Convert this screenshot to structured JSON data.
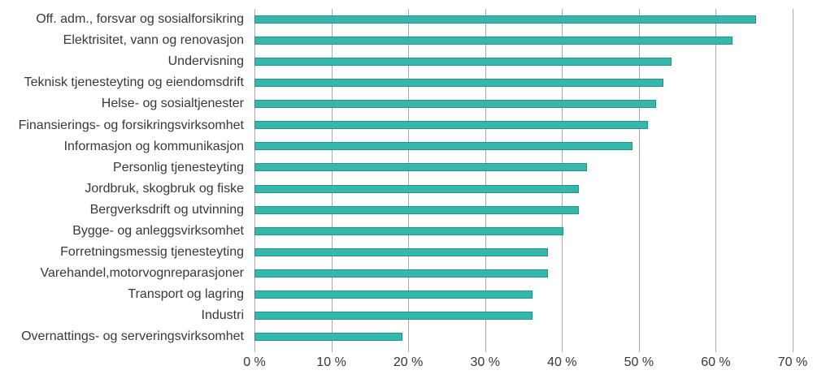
{
  "chart_data": {
    "type": "bar",
    "orientation": "horizontal",
    "title": "",
    "xlabel": "",
    "ylabel": "",
    "categories": [
      "Off. adm., forsvar og sosialforsikring",
      "Elektrisitet, vann og renovasjon",
      "Undervisning",
      "Teknisk tjenesteyting og eiendomsdrift",
      "Helse- og sosialtjenester",
      "Finansierings- og forsikringsvirksomhet",
      "Informasjon og kommunikasjon",
      "Personlig tjenesteyting",
      "Jordbruk, skogbruk og fiske",
      "Bergverksdrift og utvinning",
      "Bygge- og anleggsvirksomhet",
      "Forretningsmessig tjenesteyting",
      "Varehandel,motorvognreparasjoner",
      "Transport og lagring",
      "Industri",
      "Overnattings- og serveringsvirksomhet"
    ],
    "values": [
      65,
      62,
      54,
      53,
      52,
      51,
      49,
      43,
      42,
      42,
      40,
      38,
      38,
      36,
      36,
      19
    ],
    "unit": "%",
    "xlim": [
      0,
      70
    ],
    "x_tick_labels": [
      "0 %",
      "10 %",
      "20 %",
      "30 %",
      "40 %",
      "50 %",
      "60 %",
      "70 %"
    ],
    "grid": "vertical",
    "legend": "none",
    "colors": {
      "bar_fill": "#36b7ac",
      "bar_border": "#1f968d",
      "gridline": "#ababab",
      "text": "#383838"
    }
  }
}
